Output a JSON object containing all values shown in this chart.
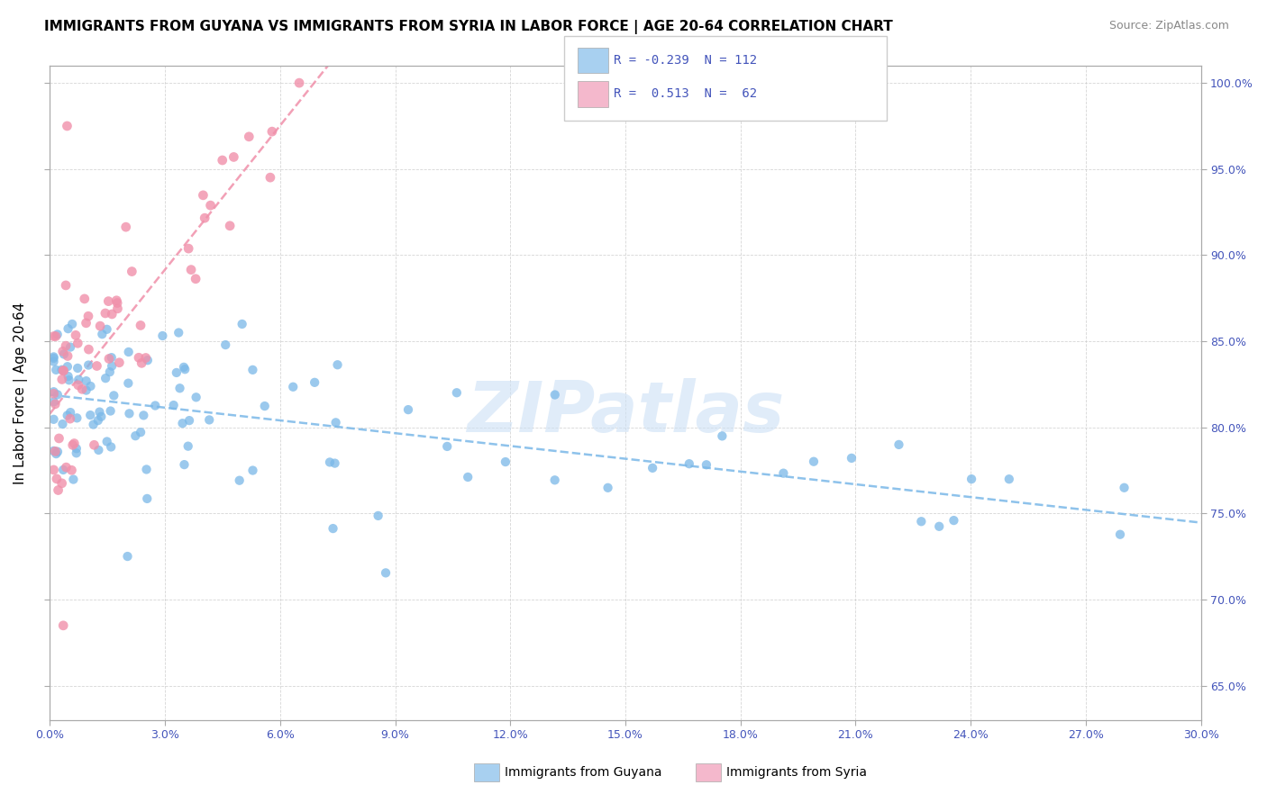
{
  "title": "IMMIGRANTS FROM GUYANA VS IMMIGRANTS FROM SYRIA IN LABOR FORCE | AGE 20-64 CORRELATION CHART",
  "source": "Source: ZipAtlas.com",
  "xmin": 0.0,
  "xmax": 30.0,
  "ymin": 63.0,
  "ymax": 101.0,
  "guyana_color": "#7ab8e8",
  "syria_color": "#f090aa",
  "guyana_legend_color": "#a8d0f0",
  "syria_legend_color": "#f4b8cc",
  "axis_color": "#4455bb",
  "grid_color": "#cccccc",
  "guyana_R": -0.239,
  "guyana_N": 112,
  "syria_R": 0.513,
  "syria_N": 62,
  "watermark": "ZIPatlas",
  "ylabel": "In Labor Force | Age 20-64",
  "yticks": [
    65,
    70,
    75,
    80,
    85,
    90,
    95,
    100
  ],
  "ytick_labels": [
    "65.0%",
    "70.0%",
    "75.0%",
    "80.0%",
    "85.0%",
    "90.0%",
    "95.0%",
    "100.0%"
  ],
  "xtick_labels": [
    "0.0%",
    "3.0%",
    "6.0%",
    "9.0%",
    "12.0%",
    "15.0%",
    "18.0%",
    "21.0%",
    "24.0%",
    "27.0%",
    "30.0%"
  ]
}
